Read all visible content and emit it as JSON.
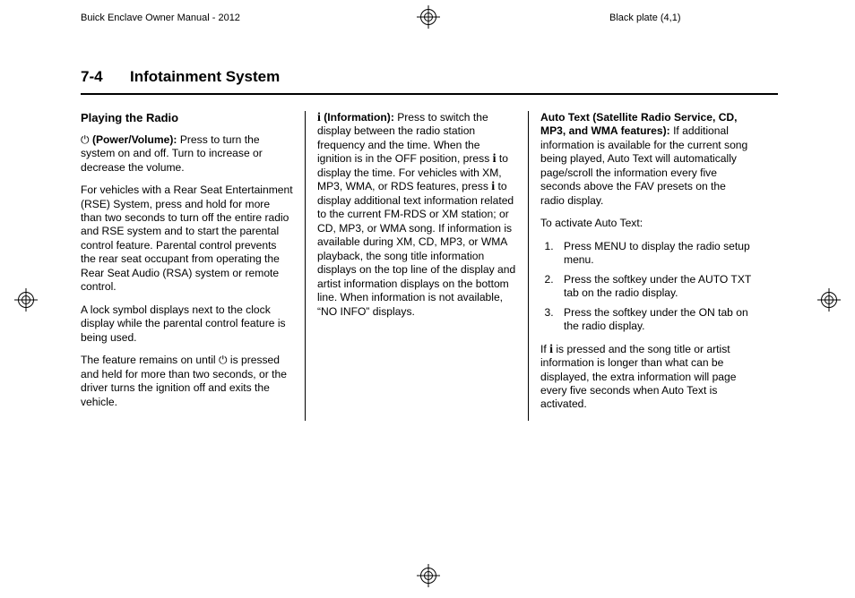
{
  "header": {
    "left": "Buick Enclave Owner Manual - 2012",
    "right": "Black plate (4,1)"
  },
  "page": {
    "number": "7-4",
    "chapter": "Infotainment System"
  },
  "col1": {
    "subhead": "Playing the Radio",
    "p1_lead_icon": "⏻",
    "p1_lead": " (Power/Volume):",
    "p1_body": "  Press to turn the system on and off. Turn to increase or decrease the volume.",
    "p2": "For vehicles with a Rear Seat Entertainment (RSE) System, press and hold for more than two seconds to turn off the entire radio and RSE system and to start the parental control feature. Parental control prevents the rear seat occupant from operating the Rear Seat Audio (RSA) system or remote control.",
    "p3": "A lock symbol displays next to the clock display while the parental control feature is being used.",
    "p4a": "The feature remains on until ",
    "p4_icon": "⏻",
    "p4b": " is pressed and held for more than two seconds, or the driver turns the ignition off and exits the vehicle."
  },
  "col2": {
    "p1_lead_icon": "i",
    "p1_lead": " (Information):",
    "p1a": "  Press to switch the display between the radio station frequency and the time. When the ignition is in the OFF position, press ",
    "p1_icon1": "i",
    "p1b": " to display the time. For vehicles with XM, MP3, WMA, or RDS features, press ",
    "p1_icon2": "i",
    "p1c": " to display additional text information related to the current FM-RDS or XM station; or CD, MP3, or WMA song. If information is available during XM, CD, MP3, or WMA playback, the song title information displays on the top line of the display and artist information displays on the bottom line. When information is not available, “NO INFO” displays."
  },
  "col3": {
    "p1_lead": "Auto Text (Satellite Radio Service, CD, MP3, and WMA features):",
    "p1_body": " If additional information is available for the current song being played, Auto Text will automatically page/scroll the information every five seconds above the FAV presets on the radio display.",
    "p2": "To activate Auto Text:",
    "li1": "Press MENU to display the radio setup menu.",
    "li2": "Press the softkey under the AUTO TXT tab on the radio display.",
    "li3": "Press the softkey under the ON tab on the radio display.",
    "p3a": "If ",
    "p3_icon": "i",
    "p3b": " is pressed and the song title or artist information is longer than what can be displayed, the extra information will page every five seconds when Auto Text is activated."
  }
}
